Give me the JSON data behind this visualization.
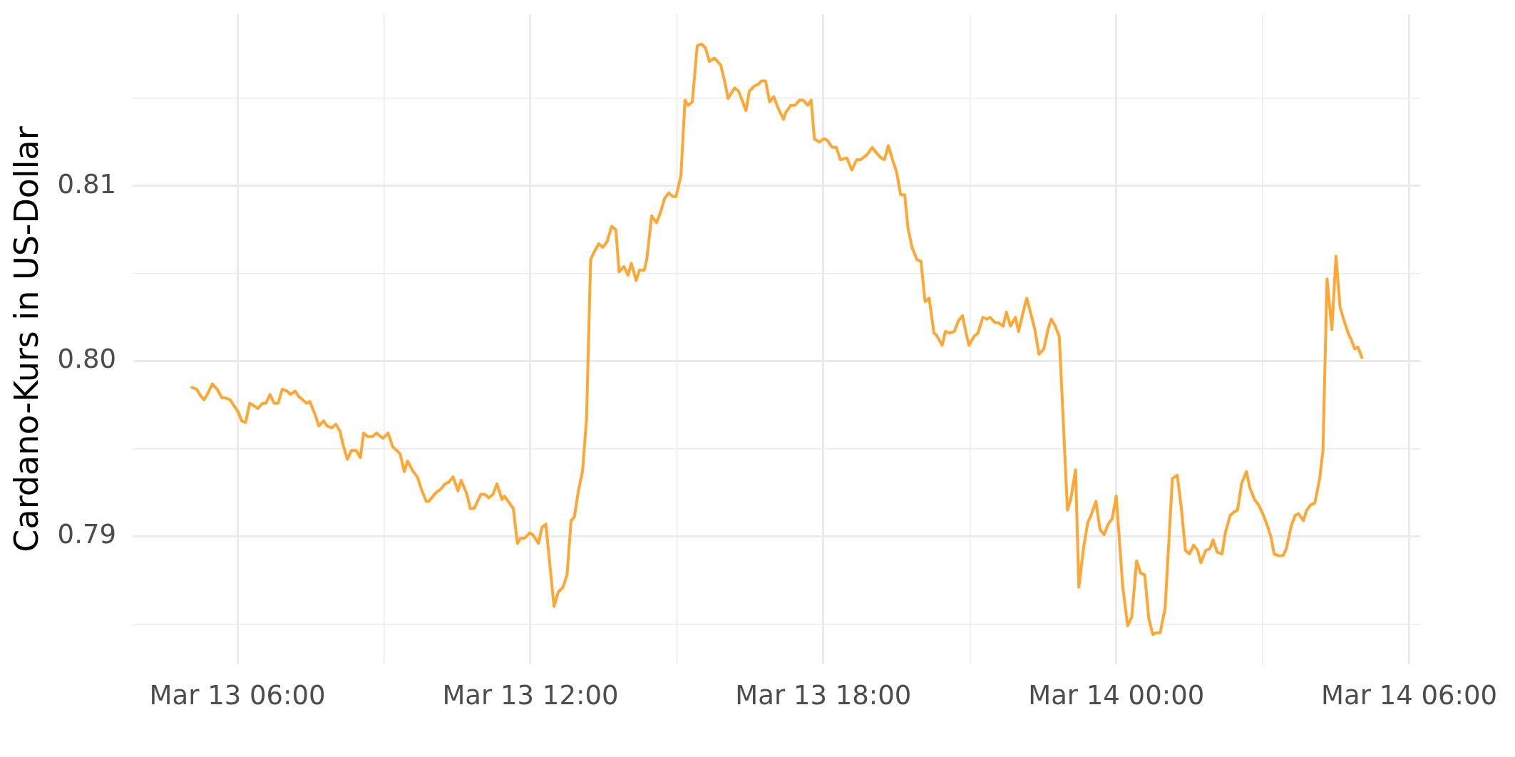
{
  "chart_data": {
    "type": "line",
    "ylabel": "Cardano-Kurs in US-Dollar",
    "grid": true,
    "xlim": [
      "--03-13T03:52",
      "--03-14T06:14"
    ],
    "xticks": [
      {
        "value": "--03-13T06:00",
        "label": "Mar 13 06:00"
      },
      {
        "value": "--03-13T09:00",
        "label": null
      },
      {
        "value": "--03-13T12:00",
        "label": "Mar 13 12:00"
      },
      {
        "value": "--03-13T15:00",
        "label": null
      },
      {
        "value": "--03-13T18:00",
        "label": "Mar 13 18:00"
      },
      {
        "value": "--03-13T21:00",
        "label": null
      },
      {
        "value": "--03-14T00:00",
        "label": "Mar 14 00:00"
      },
      {
        "value": "--03-14T03:00",
        "label": null
      },
      {
        "value": "--03-14T06:00",
        "label": "Mar 14 06:00"
      }
    ],
    "ylim": [
      0.7827,
      0.8198
    ],
    "yticks": [
      {
        "value": 0.785,
        "label": null
      },
      0.79,
      {
        "value": 0.795,
        "label": null
      },
      {
        "value": 0.8,
        "label": "0.80"
      },
      {
        "value": 0.805,
        "label": null
      },
      0.81,
      {
        "value": 0.815,
        "label": null
      }
    ],
    "x": [
      "--03-13T05:04",
      "--03-13T05:10",
      "--03-13T05:15",
      "--03-13T05:19",
      "--03-13T05:24",
      "--03-13T05:29",
      "--03-13T05:35",
      "--03-13T05:41",
      "--03-13T05:45",
      "--03-13T05:51",
      "--03-13T05:55",
      "--03-13T06:01",
      "--03-13T06:05",
      "--03-13T06:10",
      "--03-13T06:15",
      "--03-13T06:19",
      "--03-13T06:25",
      "--03-13T06:31",
      "--03-13T06:35",
      "--03-13T06:40",
      "--03-13T06:45",
      "--03-13T06:50",
      "--03-13T06:55",
      "--03-13T07:01",
      "--03-13T07:05",
      "--03-13T07:11",
      "--03-13T07:15",
      "--03-13T07:20",
      "--03-13T07:25",
      "--03-13T07:29",
      "--03-13T07:35",
      "--03-13T07:40",
      "--03-13T07:46",
      "--03-13T07:50",
      "--03-13T07:56",
      "--03-13T08:01",
      "--03-13T08:06",
      "--03-13T08:10",
      "--03-13T08:15",
      "--03-13T08:20",
      "--03-13T08:26",
      "--03-13T08:31",
      "--03-13T08:35",
      "--03-13T08:40",
      "--03-13T08:46",
      "--03-13T08:51",
      "--03-13T08:56",
      "--03-13T08:59",
      "--03-13T09:05",
      "--03-13T09:11",
      "--03-13T09:16",
      "--03-13T09:20",
      "--03-13T09:25",
      "--03-13T09:29",
      "--03-13T09:36",
      "--03-13T09:41",
      "--03-13T09:46",
      "--03-13T09:52",
      "--03-13T09:55",
      "--03-13T10:04",
      "--03-13T10:10",
      "--03-13T10:15",
      "--03-13T10:20",
      "--03-13T10:25",
      "--03-13T10:31",
      "--03-13T10:35",
      "--03-13T10:42",
      "--03-13T10:46",
      "--03-13T10:51",
      "--03-13T10:55",
      "--03-13T10:59",
      "--03-13T11:04",
      "--03-13T11:09",
      "--03-13T11:14",
      "--03-13T11:19",
      "--03-13T11:25",
      "--03-13T11:28",
      "--03-13T11:39",
      "--03-13T11:44",
      "--03-13T11:48",
      "--03-13T11:53",
      "--03-13T11:59",
      "--03-13T12:03",
      "--03-13T12:10",
      "--03-13T12:14",
      "--03-13T12:19",
      "--03-13T12:29",
      "--03-13T12:34",
      "--03-13T12:40",
      "--03-13T12:45",
      "--03-13T12:50",
      "--03-13T12:54",
      "--03-13T12:59",
      "--03-13T13:04",
      "--03-13T13:09",
      "--03-13T13:14",
      "--03-13T13:18",
      "--03-13T13:24",
      "--03-13T13:29",
      "--03-13T13:34",
      "--03-13T13:40",
      "--03-13T13:45",
      "--03-13T13:49",
      "--03-13T13:55",
      "--03-13T14:00",
      "--03-13T14:04",
      "--03-13T14:10",
      "--03-13T14:14",
      "--03-13T14:20",
      "--03-13T14:23",
      "--03-13T14:29",
      "--03-13T14:35",
      "--03-13T14:40",
      "--03-13T14:45",
      "--03-13T14:50",
      "--03-13T14:55",
      "--03-13T14:59",
      "--03-13T15:05",
      "--03-13T15:10",
      "--03-13T15:14",
      "--03-13T15:19",
      "--03-13T15:25",
      "--03-13T15:30",
      "--03-13T15:35",
      "--03-13T15:40",
      "--03-13T15:46",
      "--03-13T15:54",
      "--03-13T15:59",
      "--03-13T16:03",
      "--03-13T16:11",
      "--03-13T16:16",
      "--03-13T16:25",
      "--03-13T16:29",
      "--03-13T16:35",
      "--03-13T16:40",
      "--03-13T16:44",
      "--03-13T16:49",
      "--03-13T16:54",
      "--03-13T16:59",
      "--03-13T17:04",
      "--03-13T17:11",
      "--03-13T17:14",
      "--03-13T17:20",
      "--03-13T17:25",
      "--03-13T17:31",
      "--03-13T17:35",
      "--03-13T17:41",
      "--03-13T17:45",
      "--03-13T17:49",
      "--03-13T17:55",
      "--03-13T18:01",
      "--03-13T18:05",
      "--03-13T18:11",
      "--03-13T18:16",
      "--03-13T18:21",
      "--03-13T18:29",
      "--03-13T18:35",
      "--03-13T18:41",
      "--03-13T18:46",
      "--03-13T18:54",
      "--03-13T19:00",
      "--03-13T19:05",
      "--03-13T19:11",
      "--03-13T19:15",
      "--03-13T19:20",
      "--03-13T19:25",
      "--03-13T19:30",
      "--03-13T19:35",
      "--03-13T19:40",
      "--03-13T19:44",
      "--03-13T19:49",
      "--03-13T19:55",
      "--03-13T20:00",
      "--03-13T20:05",
      "--03-13T20:10",
      "--03-13T20:16",
      "--03-13T20:19",
      "--03-13T20:26",
      "--03-13T20:30",
      "--03-13T20:35",
      "--03-13T20:41",
      "--03-13T20:46",
      "--03-13T20:51",
      "--03-13T20:55",
      "--03-13T20:59",
      "--03-13T21:05",
      "--03-13T21:10",
      "--03-13T21:16",
      "--03-13T21:21",
      "--03-13T21:25",
      "--03-13T21:31",
      "--03-13T21:35",
      "--03-13T21:41",
      "--03-13T21:45",
      "--03-13T21:50",
      "--03-13T21:56",
      "--03-13T22:00",
      "--03-13T22:05",
      "--03-13T22:10",
      "--03-13T22:14",
      "--03-13T22:20",
      "--03-13T22:25",
      "--03-13T22:31",
      "--03-13T22:36",
      "--03-13T22:40",
      "--03-13T22:45",
      "--03-13T22:50",
      "--03-13T23:00",
      "--03-13T23:04",
      "--03-13T23:10",
      "--03-13T23:14",
      "--03-13T23:20",
      "--03-13T23:25",
      "--03-13T23:29",
      "--03-13T23:35",
      "--03-13T23:40",
      "--03-13T23:45",
      "--03-13T23:50",
      "--03-13T23:55",
      "--03-14T00:00",
      "--03-14T00:08",
      "--03-14T00:14",
      "--03-14T00:19",
      "--03-14T00:25",
      "--03-14T00:30",
      "--03-14T00:35",
      "--03-14T00:40",
      "--03-14T00:45",
      "--03-14T00:49",
      "--03-14T00:54",
      "--03-14T01:00",
      "--03-14T01:09",
      "--03-14T01:15",
      "--03-14T01:20",
      "--03-14T01:25",
      "--03-14T01:30",
      "--03-14T01:35",
      "--03-14T01:40",
      "--03-14T01:44",
      "--03-14T01:50",
      "--03-14T01:55",
      "--03-14T01:59",
      "--03-14T02:04",
      "--03-14T02:10",
      "--03-14T02:14",
      "--03-14T02:20",
      "--03-14T02:25",
      "--03-14T02:29",
      "--03-14T02:34",
      "--03-14T02:40",
      "--03-14T02:44",
      "--03-14T02:50",
      "--03-14T02:55",
      "--03-14T03:00",
      "--03-14T03:05",
      "--03-14T03:10",
      "--03-14T03:14",
      "--03-14T03:19",
      "--03-14T03:25",
      "--03-14T03:29",
      "--03-14T03:35",
      "--03-14T03:40",
      "--03-14T03:44",
      "--03-14T03:50",
      "--03-14T03:54",
      "--03-14T03:59",
      "--03-14T04:04",
      "--03-14T04:10",
      "--03-14T04:14",
      "--03-14T04:19",
      "--03-14T04:25",
      "--03-14T04:30",
      "--03-14T04:35",
      "--03-14T04:40",
      "--03-14T04:45",
      "--03-14T04:49",
      "--03-14T04:53",
      "--03-14T04:57",
      "--03-14T05:02"
    ],
    "series": [
      {
        "color": "#ffa633",
        "values": [
          0.7985,
          0.7984,
          0.798,
          0.7978,
          0.7982,
          0.7987,
          0.7984,
          0.7979,
          0.7979,
          0.7978,
          0.7975,
          0.7971,
          0.7966,
          0.7965,
          0.7976,
          0.7975,
          0.7973,
          0.7976,
          0.7976,
          0.7981,
          0.7976,
          0.7976,
          0.7984,
          0.7983,
          0.7981,
          0.7983,
          0.798,
          0.7978,
          0.7976,
          0.7977,
          0.797,
          0.7963,
          0.7966,
          0.7963,
          0.7962,
          0.7964,
          0.796,
          0.7952,
          0.7944,
          0.7949,
          0.7949,
          0.7945,
          0.7959,
          0.7957,
          0.7957,
          0.7959,
          0.7957,
          0.7956,
          0.7959,
          0.7951,
          0.7949,
          0.7947,
          0.7937,
          0.7943,
          0.7937,
          0.7934,
          0.7927,
          0.792,
          0.792,
          0.7925,
          0.7927,
          0.793,
          0.7931,
          0.7934,
          0.7926,
          0.7932,
          0.7924,
          0.7916,
          0.7916,
          0.792,
          0.7924,
          0.7924,
          0.7922,
          0.7924,
          0.793,
          0.7921,
          0.7923,
          0.7916,
          0.7896,
          0.7899,
          0.7899,
          0.7902,
          0.7901,
          0.7896,
          0.7905,
          0.7907,
          0.786,
          0.7868,
          0.7871,
          0.7878,
          0.7909,
          0.7911,
          0.7926,
          0.7937,
          0.7967,
          0.8058,
          0.8062,
          0.8067,
          0.8065,
          0.8068,
          0.8077,
          0.8075,
          0.8051,
          0.8054,
          0.8049,
          0.8056,
          0.8046,
          0.8052,
          0.8052,
          0.8058,
          0.8083,
          0.8079,
          0.8085,
          0.8093,
          0.8096,
          0.8094,
          0.8094,
          0.8106,
          0.8149,
          0.8146,
          0.8148,
          0.818,
          0.8181,
          0.8179,
          0.8171,
          0.8173,
          0.8169,
          0.8159,
          0.815,
          0.8156,
          0.8154,
          0.8143,
          0.8154,
          0.8157,
          0.8158,
          0.816,
          0.816,
          0.8148,
          0.8151,
          0.8145,
          0.8138,
          0.8142,
          0.8146,
          0.8146,
          0.8149,
          0.8149,
          0.8146,
          0.8149,
          0.8127,
          0.8125,
          0.8127,
          0.8126,
          0.8122,
          0.8122,
          0.8115,
          0.8116,
          0.8109,
          0.8115,
          0.8115,
          0.8118,
          0.8122,
          0.8119,
          0.8116,
          0.8115,
          0.8123,
          0.8115,
          0.8108,
          0.8095,
          0.8095,
          0.8076,
          0.8065,
          0.8058,
          0.8057,
          0.8034,
          0.8036,
          0.8016,
          0.8015,
          0.8009,
          0.8017,
          0.8016,
          0.8017,
          0.8023,
          0.8026,
          0.8017,
          0.8009,
          0.8014,
          0.8016,
          0.8025,
          0.8024,
          0.8025,
          0.8022,
          0.8022,
          0.802,
          0.8028,
          0.802,
          0.8025,
          0.8017,
          0.8027,
          0.8036,
          0.8029,
          0.8018,
          0.8004,
          0.8007,
          0.8018,
          0.8024,
          0.802,
          0.8014,
          0.7915,
          0.7921,
          0.7938,
          0.7871,
          0.7894,
          0.7908,
          0.7912,
          0.792,
          0.7904,
          0.7901,
          0.7907,
          0.791,
          0.7923,
          0.7871,
          0.7849,
          0.7854,
          0.7886,
          0.7879,
          0.7878,
          0.7853,
          0.7844,
          0.7845,
          0.7845,
          0.7859,
          0.7933,
          0.7935,
          0.7916,
          0.7892,
          0.789,
          0.7895,
          0.7892,
          0.7885,
          0.7892,
          0.7893,
          0.7898,
          0.7891,
          0.789,
          0.7902,
          0.7912,
          0.7914,
          0.7915,
          0.793,
          0.7937,
          0.7928,
          0.7921,
          0.7918,
          0.7913,
          0.7907,
          0.79,
          0.789,
          0.7889,
          0.7889,
          0.7893,
          0.7906,
          0.7912,
          0.7913,
          0.7909,
          0.7915,
          0.7918,
          0.7919,
          0.7933,
          0.7949,
          0.8047,
          0.8018,
          0.806,
          0.8031,
          0.8023,
          0.8016,
          0.8012,
          0.8007,
          0.8008,
          0.8002
        ]
      }
    ]
  }
}
